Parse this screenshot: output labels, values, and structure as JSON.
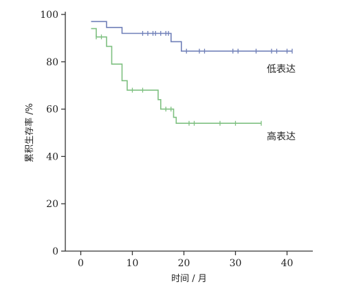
{
  "chart_data": {
    "type": "line",
    "title": "",
    "xlabel": "时间 / 月",
    "ylabel": "累积生存率 /%",
    "xlim": [
      -3,
      45
    ],
    "ylim": [
      0,
      100
    ],
    "x_ticks": [
      0,
      10,
      20,
      30,
      40
    ],
    "y_ticks": [
      0,
      20,
      40,
      60,
      80,
      100
    ],
    "grid": false,
    "series": [
      {
        "name": "低表达",
        "color": "#6f7fb8",
        "steps": [
          [
            2,
            97
          ],
          [
            5,
            97
          ],
          [
            5,
            94.5
          ],
          [
            8,
            94.5
          ],
          [
            8,
            92
          ],
          [
            17.5,
            92
          ],
          [
            17.5,
            88.5
          ],
          [
            19.5,
            88.5
          ],
          [
            19.5,
            84.5
          ],
          [
            41,
            84.5
          ]
        ],
        "censored": [
          [
            12,
            92
          ],
          [
            13,
            92
          ],
          [
            14,
            92
          ],
          [
            14.5,
            92
          ],
          [
            15.5,
            92
          ],
          [
            16.5,
            92
          ],
          [
            17,
            92
          ],
          [
            20.5,
            84.5
          ],
          [
            23,
            84.5
          ],
          [
            24,
            84.5
          ],
          [
            29.5,
            84.5
          ],
          [
            30.5,
            84.5
          ],
          [
            34,
            84.5
          ],
          [
            37,
            84.5
          ],
          [
            38,
            84.5
          ],
          [
            40,
            84.5
          ],
          [
            41,
            84.5
          ]
        ]
      },
      {
        "name": "高表达",
        "color": "#7ec080",
        "steps": [
          [
            2,
            94
          ],
          [
            3,
            94
          ],
          [
            3,
            90.5
          ],
          [
            5,
            90.5
          ],
          [
            5,
            86.5
          ],
          [
            6,
            86.5
          ],
          [
            6,
            79
          ],
          [
            8,
            79
          ],
          [
            8,
            72
          ],
          [
            9,
            72
          ],
          [
            9,
            68
          ],
          [
            15,
            68
          ],
          [
            15,
            64
          ],
          [
            15.5,
            64
          ],
          [
            15.5,
            60
          ],
          [
            18,
            60
          ],
          [
            18,
            56.5
          ],
          [
            18.5,
            56.5
          ],
          [
            18.5,
            54
          ],
          [
            35,
            54
          ]
        ],
        "censored": [
          [
            3,
            90.5
          ],
          [
            4,
            90.5
          ],
          [
            10,
            68
          ],
          [
            12,
            68
          ],
          [
            16.5,
            60
          ],
          [
            17.5,
            60
          ],
          [
            21,
            54
          ],
          [
            22,
            54
          ],
          [
            27,
            54
          ],
          [
            30,
            54
          ],
          [
            35,
            54
          ]
        ]
      }
    ]
  }
}
